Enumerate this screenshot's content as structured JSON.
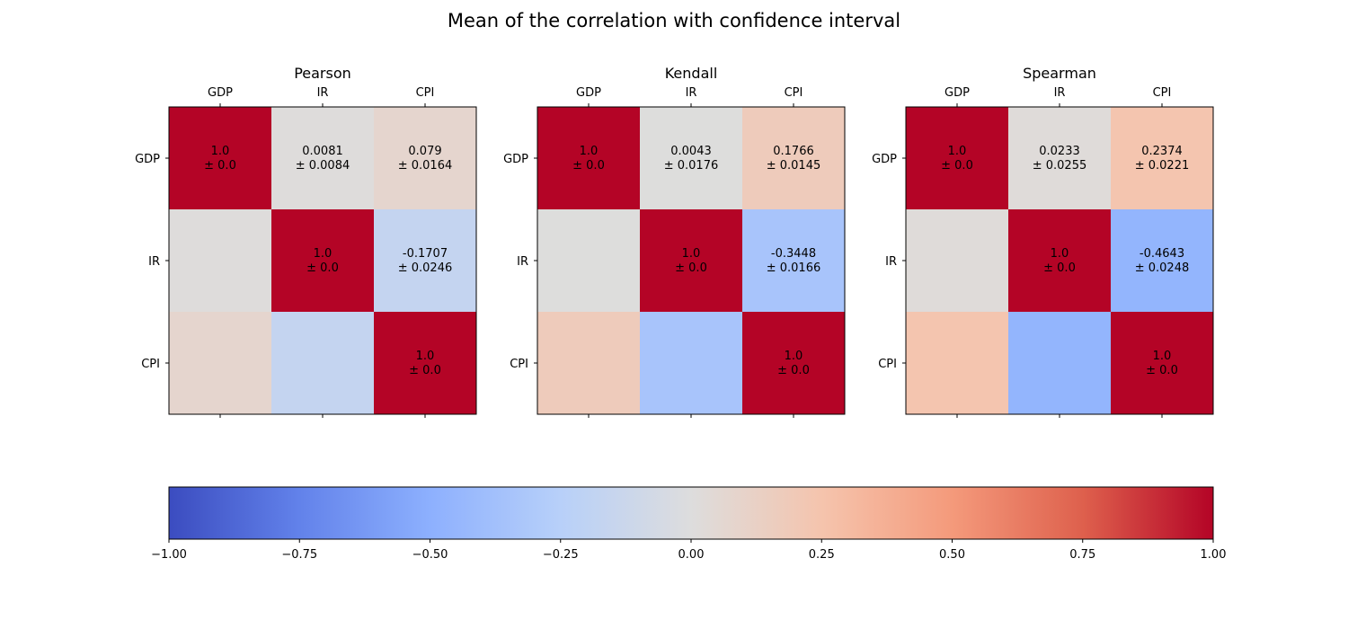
{
  "title": "Mean of the correlation with confidence interval",
  "chart_data": {
    "type": "heatmap",
    "colormap": "coolwarm",
    "variables": [
      "GDP",
      "IR",
      "CPI"
    ],
    "panels": [
      {
        "title": "Pearson",
        "matrix": [
          [
            1.0,
            0.0081,
            0.079
          ],
          [
            0.0081,
            1.0,
            -0.1707
          ],
          [
            0.079,
            -0.1707,
            1.0
          ]
        ],
        "labels": [
          [
            "1.0\n± 0.0",
            "0.0081\n± 0.0084",
            "0.079\n± 0.0164"
          ],
          [
            "",
            "1.0\n± 0.0",
            "-0.1707\n± 0.0246"
          ],
          [
            "",
            "",
            "1.0\n± 0.0"
          ]
        ]
      },
      {
        "title": "Kendall",
        "matrix": [
          [
            1.0,
            0.0043,
            0.1766
          ],
          [
            0.0043,
            1.0,
            -0.3448
          ],
          [
            0.1766,
            -0.3448,
            1.0
          ]
        ],
        "labels": [
          [
            "1.0\n± 0.0",
            "0.0043\n± 0.0176",
            "0.1766\n± 0.0145"
          ],
          [
            "",
            "1.0\n± 0.0",
            "-0.3448\n± 0.0166"
          ],
          [
            "",
            "",
            "1.0\n± 0.0"
          ]
        ]
      },
      {
        "title": "Spearman",
        "matrix": [
          [
            1.0,
            0.0233,
            0.2374
          ],
          [
            0.0233,
            1.0,
            -0.4643
          ],
          [
            0.2374,
            -0.4643,
            1.0
          ]
        ],
        "labels": [
          [
            "1.0\n± 0.0",
            "0.0233\n± 0.0255",
            "0.2374\n± 0.0221"
          ],
          [
            "",
            "1.0\n± 0.0",
            "-0.4643\n± 0.0248"
          ],
          [
            "",
            "",
            "1.0\n± 0.0"
          ]
        ]
      }
    ],
    "colorbar": {
      "range": [
        -1.0,
        1.0
      ],
      "orientation": "horizontal",
      "ticks": [
        -1.0,
        -0.75,
        -0.5,
        -0.25,
        0.0,
        0.25,
        0.5,
        0.75,
        1.0
      ],
      "tick_labels": [
        "−1.00",
        "−0.75",
        "−0.50",
        "−0.25",
        "0.00",
        "0.25",
        "0.50",
        "0.75",
        "1.00"
      ]
    }
  }
}
